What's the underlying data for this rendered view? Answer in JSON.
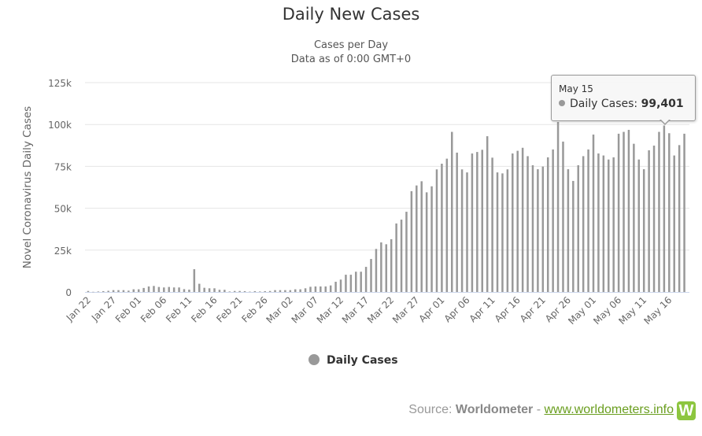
{
  "chart_data": {
    "type": "bar",
    "title": "Daily New Cases",
    "subtitle_lines": [
      "Cases per Day",
      "Data as of 0:00 GMT+0"
    ],
    "ylabel": "Novel Coronavirus Daily Cases",
    "xlabel": "",
    "ylim": [
      0,
      125000
    ],
    "y_ticks": [
      0,
      25000,
      50000,
      75000,
      100000,
      125000
    ],
    "y_tick_labels": [
      "0",
      "25k",
      "50k",
      "75k",
      "100k",
      "125k"
    ],
    "start_date": "2020-01-22",
    "x_tick_labels": [
      "Jan 22",
      "Jan 27",
      "Feb 01",
      "Feb 06",
      "Feb 11",
      "Feb 16",
      "Feb 21",
      "Feb 26",
      "Mar 02",
      "Mar 07",
      "Mar 12",
      "Mar 17",
      "Mar 22",
      "Mar 27",
      "Apr 01",
      "Apr 06",
      "Apr 11",
      "Apr 16",
      "Apr 21",
      "Apr 26",
      "May 01",
      "May 06",
      "May 11",
      "May 16"
    ],
    "x_tick_every": 5,
    "grid": true,
    "series": [
      {
        "name": "Daily Cases",
        "color": "#999999",
        "values": [
          600,
          100,
          300,
          500,
          700,
          1100,
          1100,
          1100,
          800,
          1600,
          1600,
          2400,
          3300,
          3600,
          3000,
          2700,
          3000,
          2700,
          2700,
          1700,
          1400,
          13600,
          4900,
          2500,
          2200,
          2200,
          1300,
          1300,
          300,
          600,
          600,
          500,
          200,
          500,
          300,
          500,
          600,
          1100,
          1100,
          1100,
          1100,
          1600,
          1600,
          2200,
          3100,
          3300,
          3300,
          3300,
          3900,
          6100,
          7400,
          10300,
          10300,
          12100,
          12100,
          15000,
          19700,
          25700,
          29600,
          28500,
          31500,
          40900,
          43200,
          47900,
          60200,
          63600,
          66100,
          59500,
          63100,
          73200,
          76600,
          79600,
          95600,
          83200,
          73200,
          71400,
          82700,
          83600,
          84900,
          93000,
          80200,
          71400,
          70800,
          73200,
          82700,
          84300,
          86100,
          81100,
          75700,
          73300,
          74900,
          80400,
          85100,
          101500,
          89800,
          73300,
          66300,
          75700,
          81100,
          85100,
          94000,
          82700,
          81500,
          79100,
          80400,
          94500,
          95600,
          96800,
          88500,
          79100,
          73300,
          84600,
          87400,
          95600,
          99401,
          94800,
          81500,
          87700,
          94500
        ]
      }
    ],
    "legend": {
      "label": "Daily Cases",
      "position": "bottom-center"
    },
    "tooltip": {
      "date": "May 15",
      "series": "Daily Cases",
      "label": "Daily Cases: ",
      "value": "99,401"
    }
  },
  "footer": {
    "source_label": "Source: ",
    "source_name": "Worldometer",
    "sep": " - ",
    "link": "www.worldometers.info",
    "logo_letter": "W"
  }
}
